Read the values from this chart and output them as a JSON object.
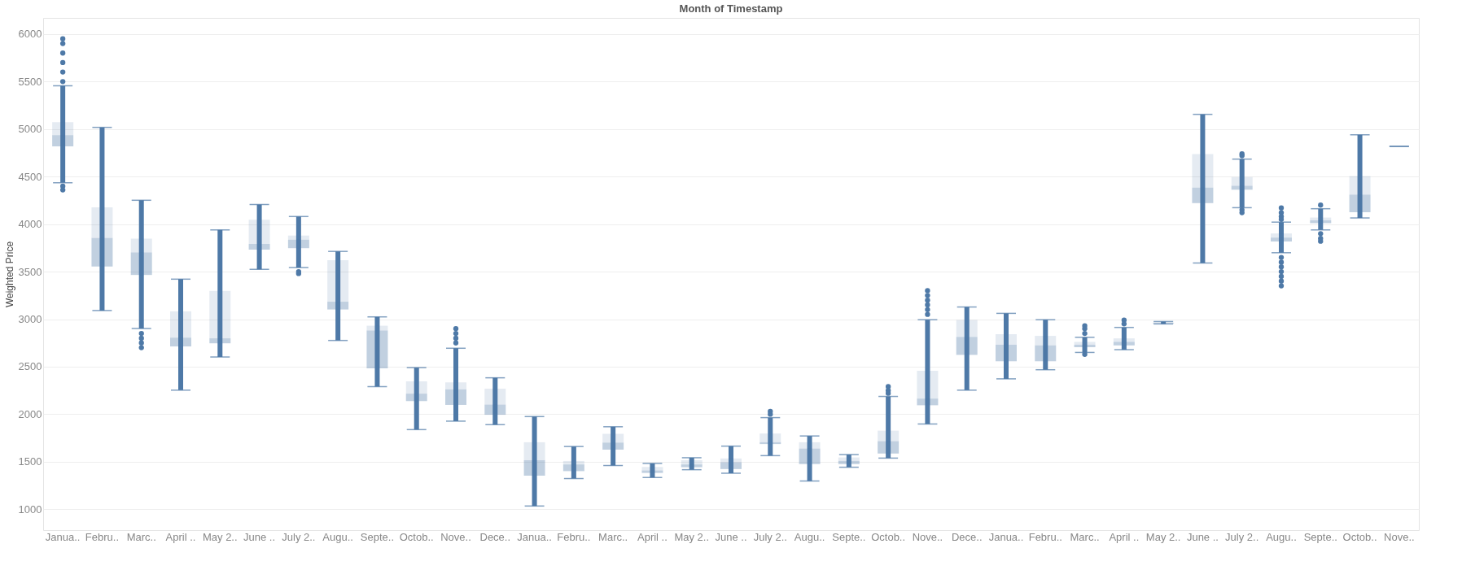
{
  "chart_data": {
    "type": "box",
    "xlabel": "Month of Timestamp",
    "ylabel": "Weighted Price",
    "categories": [
      "Janua..",
      "Febru..",
      "Marc..",
      "April ..",
      "May 2..",
      "June ..",
      "July 2..",
      "Augu..",
      "Septe..",
      "Octob..",
      "Nove..",
      "Dece..",
      "Janua..",
      "Febru..",
      "Marc..",
      "April ..",
      "May 2..",
      "June ..",
      "July 2..",
      "Augu..",
      "Septe..",
      "Octob..",
      "Nove..",
      "Dece..",
      "Janua..",
      "Febru..",
      "Marc..",
      "April ..",
      "May 2..",
      "June ..",
      "July 2..",
      "Augu..",
      "Septe..",
      "Octob..",
      "Nove.."
    ],
    "ylim": [
      780,
      6170
    ],
    "yticks": [
      1000,
      1500,
      2000,
      2500,
      3000,
      3500,
      4000,
      4500,
      5000,
      5500,
      6000
    ],
    "grid": "y",
    "series": [
      {
        "color": "#4e79a7",
        "boxes": [
          {
            "low": 4436,
            "q1": 4818,
            "median": 4936,
            "q3": 5073,
            "high": 5455,
            "outliers": [
              5950,
              5900,
              5800,
              5700,
              5600,
              5500,
              4400,
              4360
            ]
          },
          {
            "low": 3091,
            "q1": 3554,
            "median": 3854,
            "q3": 4177,
            "high": 5018
          },
          {
            "low": 2902,
            "q1": 3465,
            "median": 3702,
            "q3": 3847,
            "high": 4251,
            "outliers": [
              2850,
              2800,
              2750,
              2700
            ]
          },
          {
            "low": 2253,
            "q1": 2713,
            "median": 2805,
            "q3": 3083,
            "high": 3421
          },
          {
            "low": 2602,
            "q1": 2746,
            "median": 2798,
            "q3": 3298,
            "high": 3939
          },
          {
            "low": 3524,
            "q1": 3732,
            "median": 3791,
            "q3": 4047,
            "high": 4206
          },
          {
            "low": 3543,
            "q1": 3747,
            "median": 3836,
            "q3": 3880,
            "high": 4080,
            "outliers": [
              3500,
              3480
            ]
          },
          {
            "low": 2776,
            "q1": 3102,
            "median": 3183,
            "q3": 3621,
            "high": 3713
          },
          {
            "low": 2290,
            "q1": 2483,
            "median": 2880,
            "q3": 2931,
            "high": 3024
          },
          {
            "low": 1838,
            "q1": 2138,
            "median": 2216,
            "q3": 2346,
            "high": 2490
          },
          {
            "low": 1927,
            "q1": 2098,
            "median": 2261,
            "q3": 2335,
            "high": 2694,
            "outliers": [
              2900,
              2850,
              2800,
              2750
            ]
          },
          {
            "low": 1890,
            "q1": 1994,
            "median": 2101,
            "q3": 2268,
            "high": 2383
          },
          {
            "low": 1034,
            "q1": 1353,
            "median": 1516,
            "q3": 1705,
            "high": 1975
          },
          {
            "low": 1323,
            "q1": 1401,
            "median": 1471,
            "q3": 1508,
            "high": 1660
          },
          {
            "low": 1460,
            "q1": 1627,
            "median": 1701,
            "q3": 1794,
            "high": 1868
          },
          {
            "low": 1334,
            "q1": 1382,
            "median": 1408,
            "q3": 1445,
            "high": 1482
          },
          {
            "low": 1416,
            "q1": 1442,
            "median": 1471,
            "q3": 1516,
            "high": 1542
          },
          {
            "low": 1379,
            "q1": 1423,
            "median": 1494,
            "q3": 1534,
            "high": 1664
          },
          {
            "low": 1564,
            "q1": 1686,
            "median": 1705,
            "q3": 1797,
            "high": 1964,
            "outliers": [
              2030,
              2000
            ]
          },
          {
            "low": 1297,
            "q1": 1475,
            "median": 1638,
            "q3": 1705,
            "high": 1771
          },
          {
            "low": 1442,
            "q1": 1475,
            "median": 1508,
            "q3": 1545,
            "high": 1575
          },
          {
            "low": 1538,
            "q1": 1586,
            "median": 1716,
            "q3": 1827,
            "high": 2187,
            "outliers": [
              2290,
              2250,
              2220
            ]
          },
          {
            "low": 1897,
            "q1": 2094,
            "median": 2164,
            "q3": 2457,
            "high": 2994,
            "outliers": [
              3300,
              3250,
              3200,
              3150,
              3100,
              3050
            ]
          },
          {
            "low": 2253,
            "q1": 2624,
            "median": 2813,
            "q3": 2991,
            "high": 3128
          },
          {
            "low": 2372,
            "q1": 2557,
            "median": 2731,
            "q3": 2842,
            "high": 3061
          },
          {
            "low": 2468,
            "q1": 2557,
            "median": 2724,
            "q3": 2824,
            "high": 2994
          },
          {
            "low": 2650,
            "q1": 2705,
            "median": 2731,
            "q3": 2761,
            "high": 2809,
            "outliers": [
              2930,
              2900,
              2850,
              2630
            ]
          },
          {
            "low": 2679,
            "q1": 2724,
            "median": 2761,
            "q3": 2798,
            "high": 2913,
            "outliers": [
              2990,
              2950
            ]
          },
          {
            "low": 2950,
            "q1": 2955,
            "median": 2960,
            "q3": 2965,
            "high": 2975
          },
          {
            "low": 3591,
            "q1": 4221,
            "median": 4384,
            "q3": 4736,
            "high": 5155
          },
          {
            "low": 4173,
            "q1": 4362,
            "median": 4403,
            "q3": 4495,
            "high": 4684,
            "outliers": [
              4740,
              4720,
              4150,
              4120
            ]
          },
          {
            "low": 3699,
            "q1": 3817,
            "median": 3858,
            "q3": 3902,
            "high": 4021,
            "outliers": [
              4170,
              4120,
              4080,
              4050,
              3650,
              3600,
              3550,
              3500,
              3450,
              3400,
              3350
            ]
          },
          {
            "low": 3939,
            "q1": 4010,
            "median": 4040,
            "q3": 4069,
            "high": 4162,
            "outliers": [
              4200,
              3900,
              3850,
              3820
            ]
          },
          {
            "low": 4065,
            "q1": 4125,
            "median": 4310,
            "q3": 4506,
            "high": 4940
          },
          {
            "low": 4818,
            "q1": 4818,
            "median": 4818,
            "q3": 4818,
            "high": 4818
          }
        ]
      }
    ]
  }
}
